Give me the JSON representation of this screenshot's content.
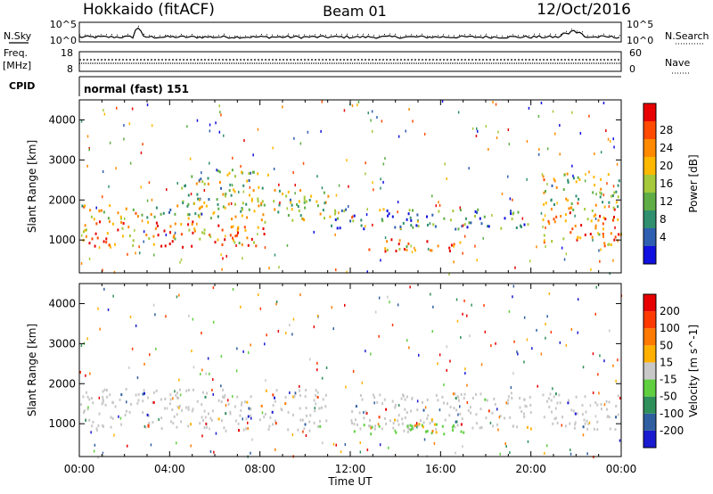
{
  "header": {
    "station": "Hokkaido (fitACF)",
    "beam": "Beam 01",
    "date": "12/Oct/2016"
  },
  "strip_labels": {
    "nsky": "N.Sky",
    "nsearch": "N.Search",
    "freq_top": "Freq.",
    "freq_unit": "[MHz]",
    "nave": "Nave",
    "cpid": "CPID",
    "cpid_text": "normal (fast) 151"
  },
  "strip_ticks": {
    "noise_left": [
      "10^5",
      "10^0"
    ],
    "noise_right": [
      "10^5",
      "10^0"
    ],
    "freq_left": [
      "18",
      "8"
    ],
    "nave_right": [
      "60",
      "0"
    ]
  },
  "colors": {
    "red": "#ff1a00",
    "orange": "#ff7a00",
    "gold": "#ffb800",
    "lightgreen": "#7ad63a",
    "green": "#3aa43a",
    "teal": "#2f7f6f",
    "blue": "#2a2ad8",
    "gray": "#c8c8c8"
  },
  "chart_data": [
    {
      "type": "heatmap",
      "name": "power",
      "ylabel": "Slant Range [km]",
      "xlabel": "Time UT",
      "x_ticks": [
        "00:00",
        "04:00",
        "08:00",
        "12:00",
        "16:00",
        "20:00",
        "00:00"
      ],
      "y_ticks": [
        1000,
        2000,
        3000,
        4000
      ],
      "ylim": [
        180,
        4500
      ],
      "colorbar_label": "Power [dB]",
      "colorbar_ticks": [
        4,
        8,
        12,
        16,
        20,
        24,
        28
      ],
      "colorbar_colors": [
        "#1010e0",
        "#2f5fb0",
        "#2f8f6f",
        "#5fae45",
        "#a5c93a",
        "#ffb800",
        "#ff8a00",
        "#ff4a00",
        "#e80000"
      ],
      "regions": [
        {
          "t0": 0.0,
          "t1": 8.5,
          "r0": 850,
          "r1": 1500,
          "level": "strong"
        },
        {
          "t0": 0.0,
          "t1": 8.0,
          "r0": 1500,
          "r1": 1900,
          "level": "medium"
        },
        {
          "t0": 4.5,
          "t1": 8.5,
          "r0": 1900,
          "r1": 2800,
          "level": "medium"
        },
        {
          "t0": 8.0,
          "t1": 11.0,
          "r0": 1500,
          "r1": 2300,
          "level": "medium"
        },
        {
          "t0": 12.5,
          "t1": 17.0,
          "r0": 750,
          "r1": 1050,
          "level": "strong"
        },
        {
          "t0": 11.0,
          "t1": 20.0,
          "r0": 1300,
          "r1": 1800,
          "level": "weak"
        },
        {
          "t0": 20.5,
          "t1": 24.0,
          "r0": 850,
          "r1": 1800,
          "level": "strong"
        },
        {
          "t0": 20.5,
          "t1": 24.0,
          "r0": 1800,
          "r1": 2700,
          "level": "medium"
        }
      ]
    },
    {
      "type": "heatmap",
      "name": "velocity",
      "ylabel": "Slant Range [km]",
      "xlabel": "Time UT",
      "x_ticks": [
        "00:00",
        "04:00",
        "08:00",
        "12:00",
        "16:00",
        "20:00",
        "00:00"
      ],
      "y_ticks": [
        1000,
        2000,
        3000,
        4000
      ],
      "ylim": [
        180,
        4500
      ],
      "colorbar_label": "Velocity [m s^-1]",
      "colorbar_ticks": [
        200,
        100,
        50,
        15,
        -15,
        -50,
        -100,
        -200
      ],
      "colorbar_colors": [
        "#1a1ad0",
        "#2f5fa0",
        "#2f8f5a",
        "#5fcf3f",
        "#c8c8c8",
        "#ffb000",
        "#ff7a00",
        "#ff3a00",
        "#e80000"
      ],
      "regions": [
        {
          "t0": 0.0,
          "t1": 11.0,
          "r0": 850,
          "r1": 1900,
          "level": "gray"
        },
        {
          "t0": 12.0,
          "t1": 20.0,
          "r0": 850,
          "r1": 1800,
          "level": "gray"
        },
        {
          "t0": 12.0,
          "t1": 17.0,
          "r0": 750,
          "r1": 1050,
          "level": "green"
        },
        {
          "t0": 14.5,
          "t1": 15.8,
          "r0": 800,
          "r1": 1150,
          "level": "orange"
        },
        {
          "t0": 20.5,
          "t1": 24.0,
          "r0": 850,
          "r1": 1800,
          "level": "gray"
        }
      ]
    }
  ]
}
